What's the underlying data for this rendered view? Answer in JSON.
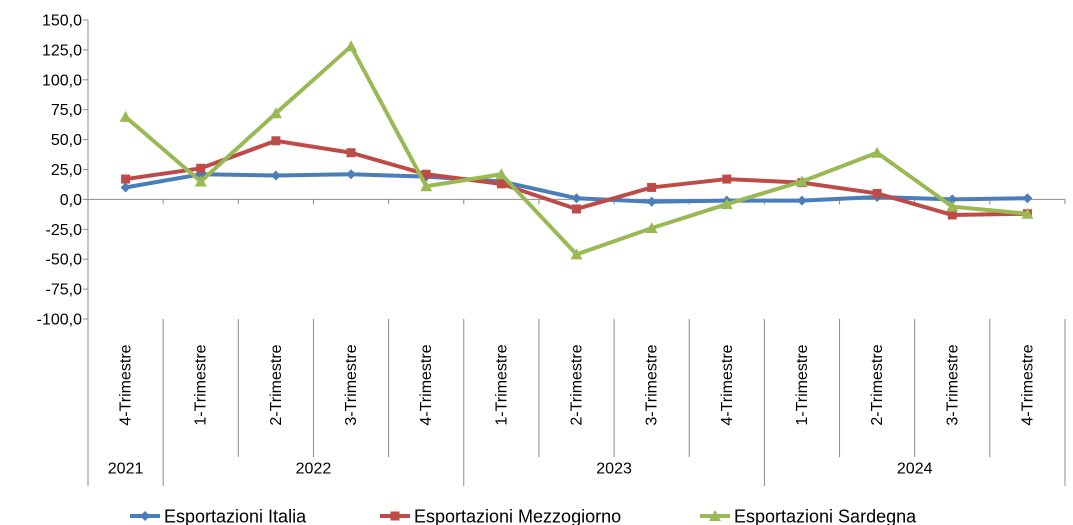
{
  "chart_data": {
    "type": "line",
    "categories": [
      "4-Trimestre",
      "1-Trimestre",
      "2-Trimestre",
      "3-Trimestre",
      "4-Trimestre",
      "1-Trimestre",
      "2-Trimestre",
      "3-Trimestre",
      "4-Trimestre",
      "1-Trimestre",
      "2-Trimestre",
      "3-Trimestre",
      "4-Trimestre"
    ],
    "years": [
      {
        "label": "2021",
        "span": 1
      },
      {
        "label": "2022",
        "span": 4
      },
      {
        "label": "2023",
        "span": 4
      },
      {
        "label": "2024",
        "span": 4
      }
    ],
    "ylim": [
      -100,
      150
    ],
    "yticks": [
      -100,
      -75,
      -50,
      -25,
      0,
      25,
      50,
      75,
      100,
      125,
      150
    ],
    "ytick_labels": [
      "-100,0",
      "-75,0",
      "-50,0",
      "-25,0",
      "0,0",
      "25,0",
      "50,0",
      "75,0",
      "100,0",
      "125,0",
      "150,0"
    ],
    "grid": false,
    "legend_position": "bottom",
    "series": [
      {
        "name": "Esportazioni Italia",
        "color": "#4a7ebb",
        "marker": "diamond",
        "values": [
          10,
          21,
          20,
          21,
          19,
          15,
          1,
          -2,
          -1,
          -1,
          2,
          0,
          1
        ]
      },
      {
        "name": "Esportazioni Mezzogiorno",
        "color": "#be4b48",
        "marker": "square",
        "values": [
          17,
          26,
          49,
          39,
          21,
          13,
          -8,
          10,
          17,
          14,
          5,
          -13,
          -12
        ]
      },
      {
        "name": "Esportazioni Sardegna",
        "color": "#98b954",
        "marker": "triangle",
        "values": [
          69,
          15,
          72,
          128,
          11,
          21,
          -46,
          -24,
          -4,
          15,
          39,
          -6,
          -12
        ]
      }
    ]
  }
}
